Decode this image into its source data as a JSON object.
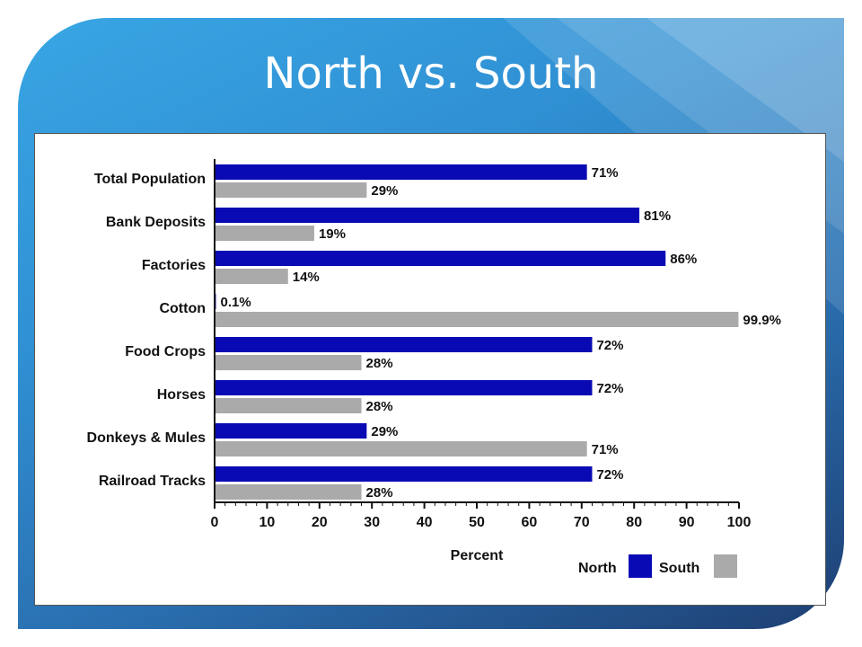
{
  "slide": {
    "title": "North vs. South"
  },
  "colors": {
    "north": "#0a0ab4",
    "south": "#aaaaaa",
    "background_light": "#39a6e4",
    "background_dark": "#1e3f72"
  },
  "chart_data": {
    "type": "bar",
    "orientation": "horizontal",
    "categories": [
      "Total Population",
      "Bank Deposits",
      "Factories",
      "Cotton",
      "Food Crops",
      "Horses",
      "Donkeys & Mules",
      "Railroad Tracks"
    ],
    "series": [
      {
        "name": "North",
        "values": [
          71,
          81,
          86,
          0.1,
          72,
          72,
          29,
          72
        ],
        "labels": [
          "71%",
          "81%",
          "86%",
          "0.1%",
          "72%",
          "72%",
          "29%",
          "72%"
        ]
      },
      {
        "name": "South",
        "values": [
          29,
          19,
          14,
          99.9,
          28,
          28,
          71,
          28
        ],
        "labels": [
          "29%",
          "19%",
          "14%",
          "99.9%",
          "28%",
          "28%",
          "71%",
          "28%"
        ]
      }
    ],
    "xlabel": "Percent",
    "xlim": [
      0,
      100
    ],
    "xticks": [
      "0",
      "10",
      "20",
      "30",
      "40",
      "50",
      "60",
      "70",
      "80",
      "90",
      "100"
    ],
    "legend": {
      "position": "bottom-right",
      "entries": [
        "North",
        "South"
      ]
    },
    "grid": false
  }
}
